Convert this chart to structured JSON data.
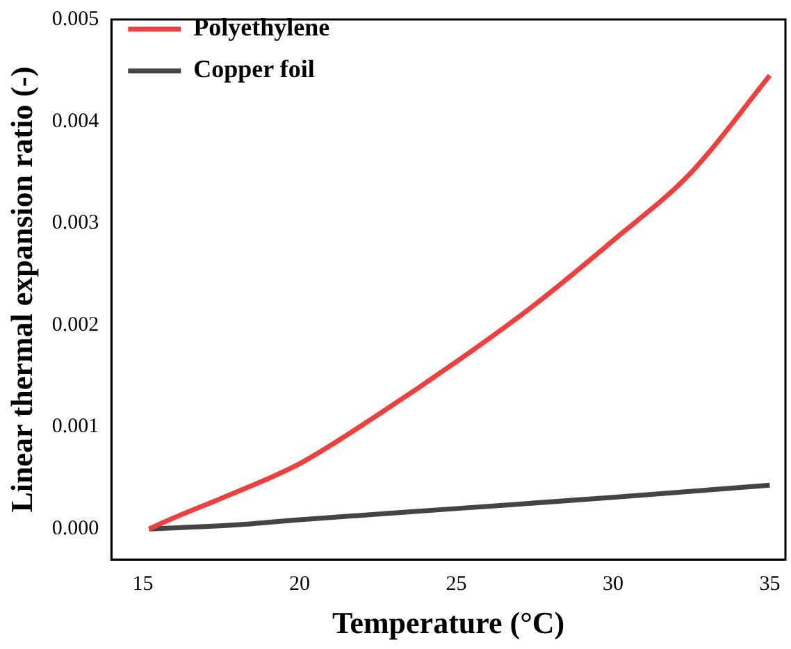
{
  "chart_data": {
    "type": "line",
    "xlabel": "Temperature (°C)",
    "ylabel": "Linear thermal expansion ratio (-)",
    "xlim": [
      14,
      35.5
    ],
    "xticks": [
      15,
      20,
      25,
      30,
      35
    ],
    "ylim": [
      -0.0003,
      0.005
    ],
    "yticks": [
      {
        "value": 0,
        "label": "0.000"
      },
      {
        "value": 0.001,
        "label": "0.001"
      },
      {
        "value": 0.002,
        "label": "0.002"
      },
      {
        "value": 0.003,
        "label": "0.003"
      },
      {
        "value": 0.004,
        "label": "0.004"
      },
      {
        "value": 0.005,
        "label": "0.005"
      }
    ],
    "grid": false,
    "legend": "top left",
    "marker": "none",
    "line_style": "solid",
    "series": [
      {
        "name": "Polyethylene",
        "color": "#ef4040",
        "x": [
          15.2,
          16,
          17.5,
          20,
          22.5,
          25,
          27.5,
          30,
          32.5,
          35
        ],
        "values": [
          0,
          0.00011,
          0.0003,
          0.00064,
          0.00112,
          0.00164,
          0.0022,
          0.00283,
          0.0035,
          0.00445
        ]
      },
      {
        "name": "Copper foil",
        "color": "#444444",
        "x": [
          15.2,
          18,
          20,
          25,
          30,
          35
        ],
        "values": [
          0,
          4e-05,
          9e-05,
          0.0002,
          0.00031,
          0.00043
        ]
      }
    ]
  }
}
